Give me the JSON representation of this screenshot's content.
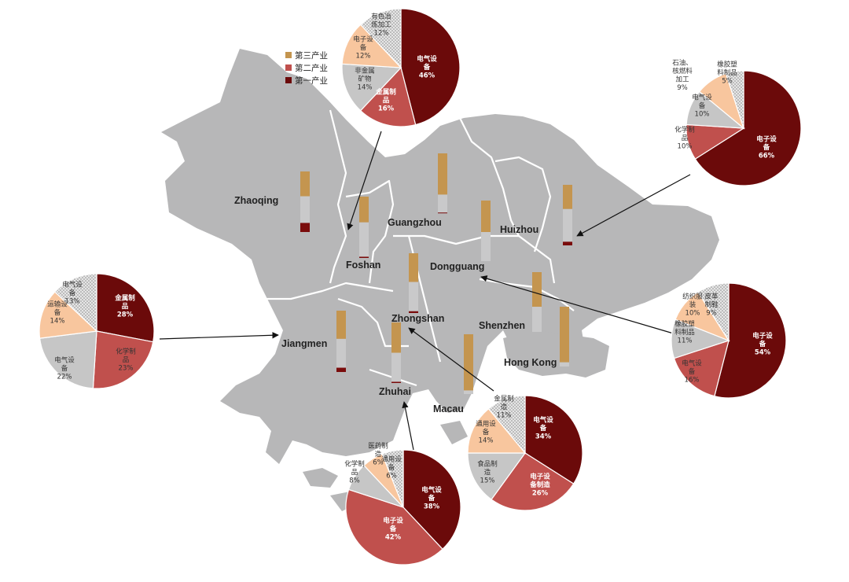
{
  "colors": {
    "land": "#b7b7b8",
    "border": "#ffffff",
    "tertiary": "#c4954f",
    "secondary": "#c9c9ca",
    "primary": "#7a0c0c",
    "pie_dark": "#6b0a0a",
    "pie_red": "#c0504d",
    "pie_gray": "#c6c6c6",
    "pie_peach": "#f8c69e",
    "pie_dots": "#d5d5d5"
  },
  "legend": [
    {
      "label": "第三产业",
      "color": "#c4954f"
    },
    {
      "label": "第二产业",
      "color": "#c0504d"
    },
    {
      "label": "第一产业",
      "color": "#6b0a0a"
    }
  ],
  "cities": [
    {
      "id": "zhaoqing",
      "name": "Zhaoqing"
    },
    {
      "id": "guangzhou",
      "name": "Guangzhou"
    },
    {
      "id": "huizhou",
      "name": "Huizhou"
    },
    {
      "id": "foshan",
      "name": "Foshan"
    },
    {
      "id": "dongguang",
      "name": "Dongguang"
    },
    {
      "id": "zhongshan",
      "name": "Zhongshan"
    },
    {
      "id": "shenzhen",
      "name": "Shenzhen"
    },
    {
      "id": "jiangmen",
      "name": "Jiangmen"
    },
    {
      "id": "hongkong",
      "name": "Hong Kong"
    },
    {
      "id": "zhuhai",
      "name": "Zhuhai"
    },
    {
      "id": "macau",
      "name": "Macau"
    }
  ],
  "industry_bars": [
    {
      "city": "zhaoqing",
      "tertiary": 0.41,
      "secondary": 0.44,
      "primary": 0.15
    },
    {
      "city": "foshan",
      "tertiary": 0.42,
      "secondary": 0.56,
      "primary": 0.02
    },
    {
      "city": "guangzhou",
      "tertiary": 0.69,
      "secondary": 0.3,
      "primary": 0.01
    },
    {
      "city": "huizhou",
      "tertiary": 0.4,
      "secondary": 0.54,
      "primary": 0.06
    },
    {
      "city": "dongguang",
      "tertiary": 0.52,
      "secondary": 0.48,
      "primary": 0.0
    },
    {
      "city": "zhongshan",
      "tertiary": 0.48,
      "secondary": 0.49,
      "primary": 0.03
    },
    {
      "city": "shenzhen",
      "tertiary": 0.58,
      "secondary": 0.42,
      "primary": 0.0
    },
    {
      "city": "jiangmen",
      "tertiary": 0.46,
      "secondary": 0.47,
      "primary": 0.07
    },
    {
      "city": "hongkong",
      "tertiary": 0.93,
      "secondary": 0.07,
      "primary": 0.0
    },
    {
      "city": "zhuhai",
      "tertiary": 0.5,
      "secondary": 0.48,
      "primary": 0.02
    },
    {
      "city": "macau",
      "tertiary": 0.94,
      "secondary": 0.06,
      "primary": 0.0
    }
  ],
  "pies": [
    {
      "city": "foshan",
      "slices": [
        {
          "label": "电气设备",
          "pct": "46%",
          "value": 46,
          "color": "#6b0a0a"
        },
        {
          "label": "金属制品",
          "pct": "16%",
          "value": 16,
          "color": "#c0504d"
        },
        {
          "label": "非金属矿物",
          "pct": "14%",
          "value": 14,
          "color": "#c6c6c6"
        },
        {
          "label": "电子设备",
          "pct": "12%",
          "value": 12,
          "color": "#f8c69e"
        },
        {
          "label": "有色冶炼加工",
          "pct": "12%",
          "value": 12,
          "color": "#d5d5d5"
        }
      ]
    },
    {
      "city": "huizhou",
      "slices": [
        {
          "label": "电子设备",
          "pct": "66%",
          "value": 66,
          "color": "#6b0a0a"
        },
        {
          "label": "化学制品",
          "pct": "10%",
          "value": 10,
          "color": "#c0504d"
        },
        {
          "label": "电气设备",
          "pct": "10%",
          "value": 10,
          "color": "#c6c6c6"
        },
        {
          "label": "石油、核燃料加工",
          "pct": "9%",
          "value": 9,
          "color": "#f8c69e"
        },
        {
          "label": "橡胶塑料制品",
          "pct": "5%",
          "value": 5,
          "color": "#d5d5d5"
        }
      ]
    },
    {
      "city": "jiangmen",
      "slices": [
        {
          "label": "金属制品",
          "pct": "28%",
          "value": 28,
          "color": "#6b0a0a"
        },
        {
          "label": "化学制品",
          "pct": "23%",
          "value": 23,
          "color": "#c0504d"
        },
        {
          "label": "电气设备",
          "pct": "22%",
          "value": 22,
          "color": "#c6c6c6"
        },
        {
          "label": "运输设备",
          "pct": "14%",
          "value": 14,
          "color": "#f8c69e"
        },
        {
          "label": "电气设备",
          "pct": "13%",
          "value": 13,
          "color": "#d5d5d5"
        }
      ]
    },
    {
      "city": "dongguang",
      "slices": [
        {
          "label": "电子设备",
          "pct": "54%",
          "value": 54,
          "color": "#6b0a0a"
        },
        {
          "label": "电气设备",
          "pct": "16%",
          "value": 16,
          "color": "#c0504d"
        },
        {
          "label": "橡胶塑料制品",
          "pct": "11%",
          "value": 11,
          "color": "#c6c6c6"
        },
        {
          "label": "纺织服装",
          "pct": "10%",
          "value": 10,
          "color": "#f8c69e"
        },
        {
          "label": "皮革制鞋",
          "pct": "9%",
          "value": 9,
          "color": "#d5d5d5"
        }
      ]
    },
    {
      "city": "zhongshan",
      "slices": [
        {
          "label": "电气设备",
          "pct": "34%",
          "value": 34,
          "color": "#6b0a0a"
        },
        {
          "label": "电子设备制造",
          "pct": "26%",
          "value": 26,
          "color": "#c0504d"
        },
        {
          "label": "食品制造",
          "pct": "15%",
          "value": 15,
          "color": "#c6c6c6"
        },
        {
          "label": "通用设备",
          "pct": "14%",
          "value": 14,
          "color": "#f8c69e"
        },
        {
          "label": "金属制造",
          "pct": "11%",
          "value": 11,
          "color": "#d5d5d5"
        }
      ]
    },
    {
      "city": "zhuhai",
      "slices": [
        {
          "label": "电气设备",
          "pct": "38%",
          "value": 38,
          "color": "#6b0a0a"
        },
        {
          "label": "电子设备",
          "pct": "42%",
          "value": 42,
          "color": "#c0504d"
        },
        {
          "label": "化学制品",
          "pct": "8%",
          "value": 8,
          "color": "#c6c6c6"
        },
        {
          "label": "医药制造",
          "pct": "6%",
          "value": 6,
          "color": "#f8c69e"
        },
        {
          "label": "通用设备",
          "pct": "6%",
          "value": 6,
          "color": "#d5d5d5"
        }
      ]
    }
  ]
}
